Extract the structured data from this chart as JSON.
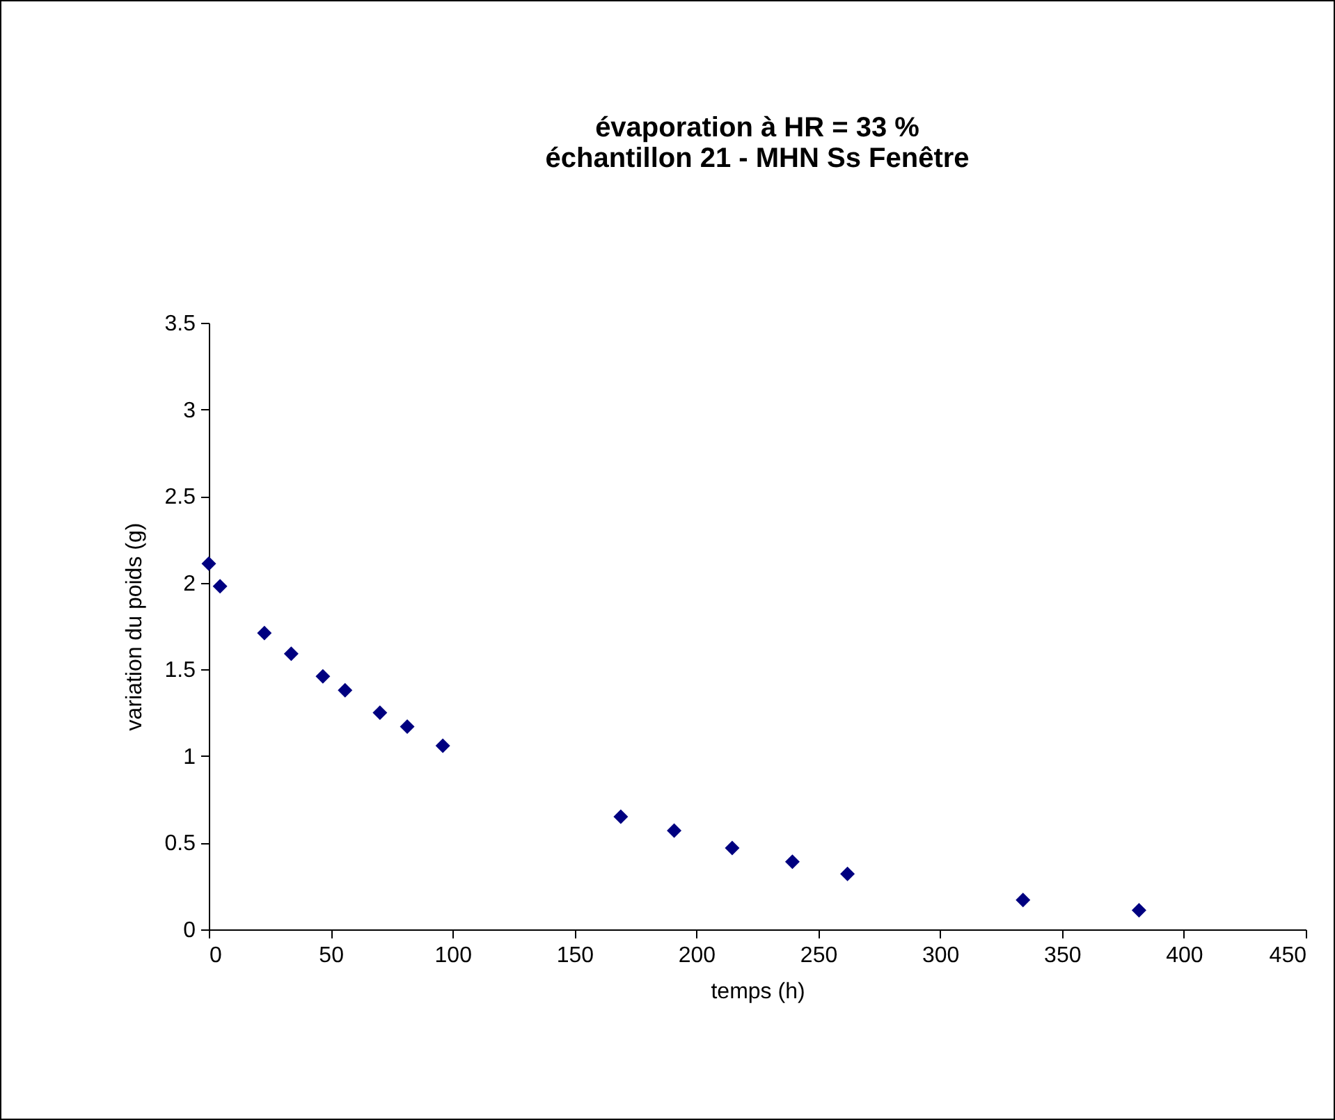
{
  "chart_data": {
    "type": "scatter",
    "title": [
      "évaporation à HR = 33 %",
      "échantillon 21 - MHN Ss Fenêtre"
    ],
    "xlabel": "temps (h)",
    "ylabel": "variation du poids (g)",
    "x": [
      0,
      4.6,
      22.8,
      33.8,
      46.8,
      55.9,
      70.2,
      81.4,
      96,
      169,
      190.9,
      214.7,
      239.4,
      262,
      334,
      381.6
    ],
    "series": [
      {
        "color": "#000080",
        "values": [
          2.11,
          1.98,
          1.71,
          1.59,
          1.46,
          1.38,
          1.25,
          1.17,
          1.06,
          0.65,
          0.57,
          0.47,
          0.39,
          0.32,
          0.17,
          0.11
        ]
      }
    ],
    "xlim": [
      0,
      450
    ],
    "xticks": [
      0,
      50,
      100,
      150,
      200,
      250,
      300,
      350,
      400,
      450
    ],
    "ylim": [
      0,
      3.5
    ],
    "yticks": [
      0,
      0.5,
      1,
      1.5,
      2,
      2.5,
      3,
      3.5
    ],
    "marker": "diamond",
    "grid": false,
    "legend": false
  }
}
